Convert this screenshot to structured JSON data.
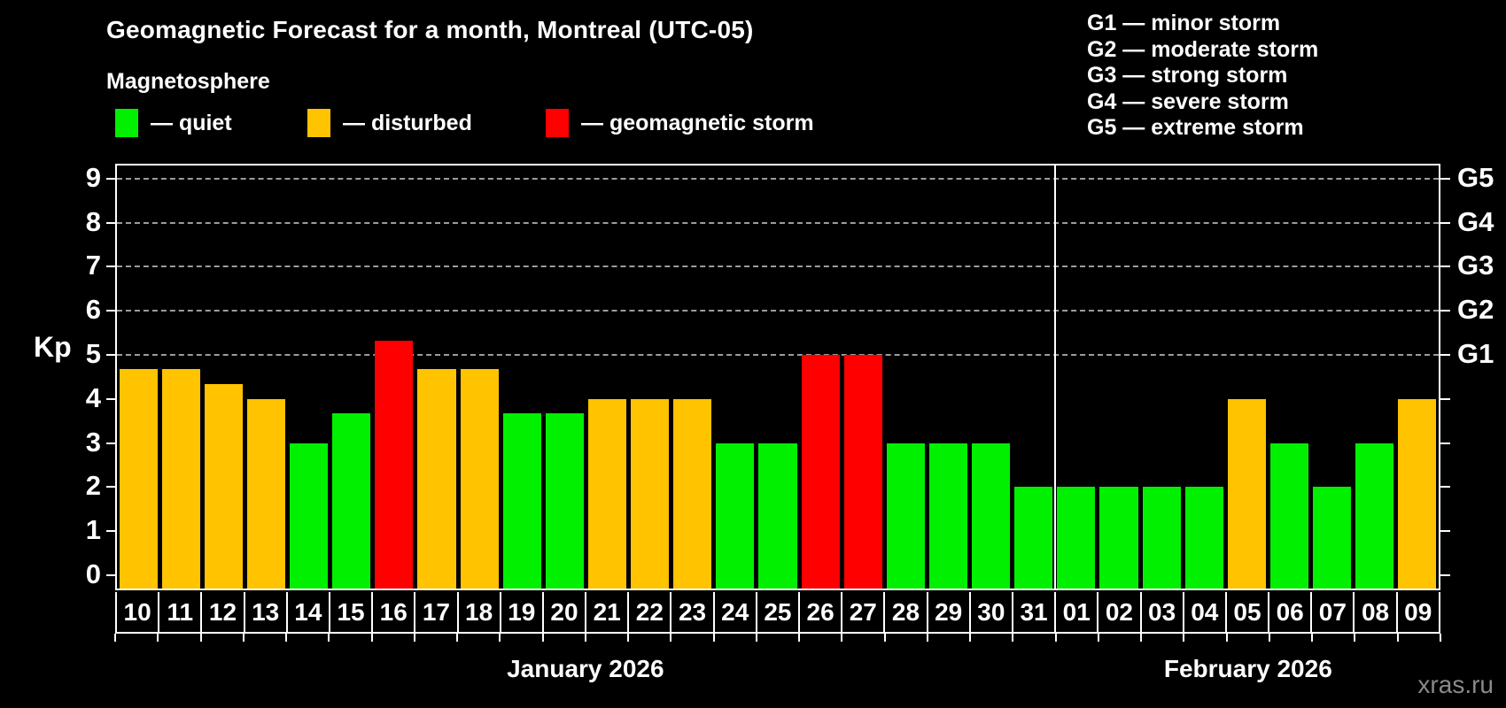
{
  "header": {
    "title": "Geomagnetic Forecast for a month, Montreal (UTC-05)",
    "subtitle": "Magnetosphere"
  },
  "legend": {
    "items": [
      {
        "key": "quiet",
        "label": "— quiet",
        "color": "#00f000"
      },
      {
        "key": "disturbed",
        "label": "— disturbed",
        "color": "#ffc300"
      },
      {
        "key": "storm",
        "label": "— geomagnetic storm",
        "color": "#fe0000"
      }
    ]
  },
  "storm_scale_legend": {
    "items": [
      "G1 — minor storm",
      "G2 — moderate storm",
      "G3 — strong storm",
      "G4 — severe storm",
      "G5 — extreme storm"
    ]
  },
  "watermark": "xras.ru",
  "chart_data": {
    "type": "bar",
    "title": "Geomagnetic Forecast for a month, Montreal (UTC-05)",
    "ylabel": "Kp",
    "ylim": [
      0,
      9.4
    ],
    "grid": "dashed horizontal at storm levels only",
    "y_ticks": [
      0,
      1,
      2,
      3,
      4,
      5,
      6,
      7,
      8,
      9
    ],
    "gridlines_kp": [
      5,
      6,
      7,
      8,
      9
    ],
    "right_axis_labels": [
      {
        "kp": 5,
        "label": "G1"
      },
      {
        "kp": 6,
        "label": "G2"
      },
      {
        "kp": 7,
        "label": "G3"
      },
      {
        "kp": 8,
        "label": "G4"
      },
      {
        "kp": 9,
        "label": "G5"
      }
    ],
    "months": [
      {
        "label": "January 2026",
        "days": 22
      },
      {
        "label": "February 2026",
        "days": 9
      }
    ],
    "categories": [
      "10",
      "11",
      "12",
      "13",
      "14",
      "15",
      "16",
      "17",
      "18",
      "19",
      "20",
      "21",
      "22",
      "23",
      "24",
      "25",
      "26",
      "27",
      "28",
      "29",
      "30",
      "31",
      "01",
      "02",
      "03",
      "04",
      "05",
      "06",
      "07",
      "08",
      "09"
    ],
    "values": [
      4.67,
      4.67,
      4.33,
      4.0,
      3.0,
      3.67,
      5.33,
      4.67,
      4.67,
      3.67,
      3.67,
      4.0,
      4.0,
      4.0,
      3.0,
      3.0,
      5.0,
      5.0,
      3.0,
      3.0,
      3.0,
      2.0,
      2.0,
      2.0,
      2.0,
      2.0,
      4.0,
      3.0,
      2.0,
      3.0,
      4.0
    ],
    "statuses": [
      "disturbed",
      "disturbed",
      "disturbed",
      "disturbed",
      "quiet",
      "quiet",
      "storm",
      "disturbed",
      "disturbed",
      "quiet",
      "quiet",
      "disturbed",
      "disturbed",
      "disturbed",
      "quiet",
      "quiet",
      "storm",
      "storm",
      "quiet",
      "quiet",
      "quiet",
      "quiet",
      "quiet",
      "quiet",
      "quiet",
      "quiet",
      "disturbed",
      "quiet",
      "quiet",
      "quiet",
      "disturbed"
    ],
    "colors": {
      "quiet": "#00f000",
      "disturbed": "#ffc300",
      "storm": "#fe0000"
    },
    "legend_position": "top-left"
  }
}
